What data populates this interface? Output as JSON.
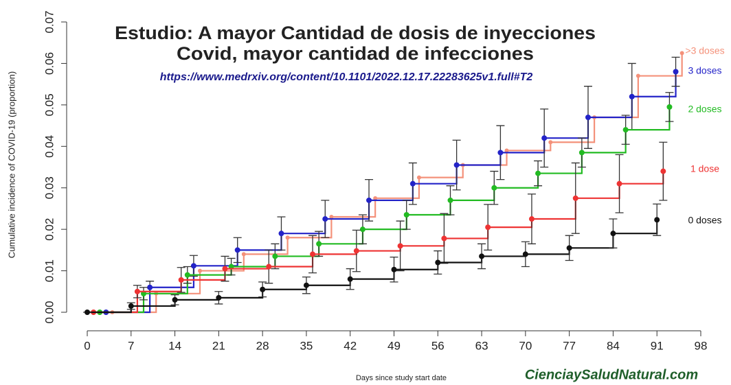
{
  "chart_data": {
    "type": "line",
    "title": "Estudio: A mayor Cantidad de dosis de inyecciones",
    "subtitle": "Covid, mayor cantidad de infecciones",
    "source": "https://www.medrxiv.org/content/10.1101/2022.12.17.22283625v1.full#T2",
    "watermark": "CienciaySaludNatural.com",
    "x_label": "Days since study start date",
    "y_label": "Cumulative incidence of COVID-19 (proportion)",
    "xlim": [
      0,
      98
    ],
    "xticks": [
      0,
      7,
      14,
      21,
      28,
      35,
      42,
      49,
      56,
      63,
      70,
      77,
      84,
      91,
      98
    ],
    "ylim": [
      0,
      0.07
    ],
    "yticks": [
      {
        "value": 0,
        "label": "0.00"
      },
      0.01,
      0.02,
      0.03,
      0.04,
      0.05,
      0.06,
      0.07
    ],
    "series": [
      {
        "name": ">3 doses",
        "color": "#f4917a",
        "x": [
          4,
          11,
          18,
          25,
          32,
          39,
          46,
          53,
          60,
          67,
          74,
          81,
          88,
          95
        ],
        "values": [
          0,
          0.0045,
          0.01,
          0.014,
          0.018,
          0.023,
          0.0275,
          0.0325,
          0.0355,
          0.039,
          0.041,
          0.047,
          0.057,
          0.0625
        ]
      },
      {
        "name": "3 doses",
        "color": "#2323c8",
        "x": [
          3,
          10,
          17,
          24,
          31,
          38,
          45,
          52,
          59,
          66,
          73,
          80,
          87,
          94
        ],
        "values": [
          0,
          0.006,
          0.0112,
          0.015,
          0.019,
          0.0225,
          0.027,
          0.031,
          0.0355,
          0.0385,
          0.042,
          0.047,
          0.052,
          0.058
        ],
        "errors": [
          0,
          0.0015,
          0.0025,
          0.003,
          0.004,
          0.0045,
          0.005,
          0.005,
          0.006,
          0.0065,
          0.007,
          0.0075,
          0.008,
          0.0035
        ]
      },
      {
        "name": "2 doses",
        "color": "#22bb22",
        "x": [
          2,
          9,
          16,
          23,
          30,
          37,
          44,
          51,
          58,
          65,
          72,
          79,
          86,
          93
        ],
        "values": [
          0,
          0.0045,
          0.009,
          0.011,
          0.0135,
          0.0165,
          0.02,
          0.0235,
          0.027,
          0.03,
          0.0335,
          0.0385,
          0.044,
          0.0495
        ],
        "errors": [
          0,
          0.0015,
          0.002,
          0.002,
          0.003,
          0.003,
          0.0035,
          0.0035,
          0.0035,
          0.004,
          0.003,
          0.0035,
          0.0035,
          0.0035
        ]
      },
      {
        "name": "1 dose",
        "color": "#ee3333",
        "x": [
          1,
          8,
          15,
          22,
          29,
          36,
          43,
          50,
          57,
          64,
          71,
          78,
          85,
          92
        ],
        "values": [
          0,
          0.005,
          0.0078,
          0.0105,
          0.011,
          0.014,
          0.0148,
          0.016,
          0.0178,
          0.0205,
          0.0225,
          0.0275,
          0.031,
          0.034
        ],
        "errors": [
          0,
          0.0015,
          0.003,
          0.003,
          0.004,
          0.0045,
          0.005,
          0.006,
          0.006,
          0.0055,
          0.006,
          0.0085,
          0.007,
          0.007
        ]
      },
      {
        "name": "0 doses",
        "color": "#111111",
        "x": [
          0,
          7,
          14,
          21,
          28,
          35,
          42,
          49,
          56,
          63,
          70,
          77,
          84,
          91
        ],
        "values": [
          0,
          0.0015,
          0.003,
          0.0035,
          0.0055,
          0.0065,
          0.008,
          0.0103,
          0.012,
          0.0135,
          0.014,
          0.0155,
          0.019,
          0.0223
        ],
        "errors": [
          0,
          0.0008,
          0.0012,
          0.0015,
          0.0018,
          0.002,
          0.0025,
          0.003,
          0.0028,
          0.003,
          0.003,
          0.003,
          0.0035,
          0.0038
        ]
      }
    ]
  }
}
